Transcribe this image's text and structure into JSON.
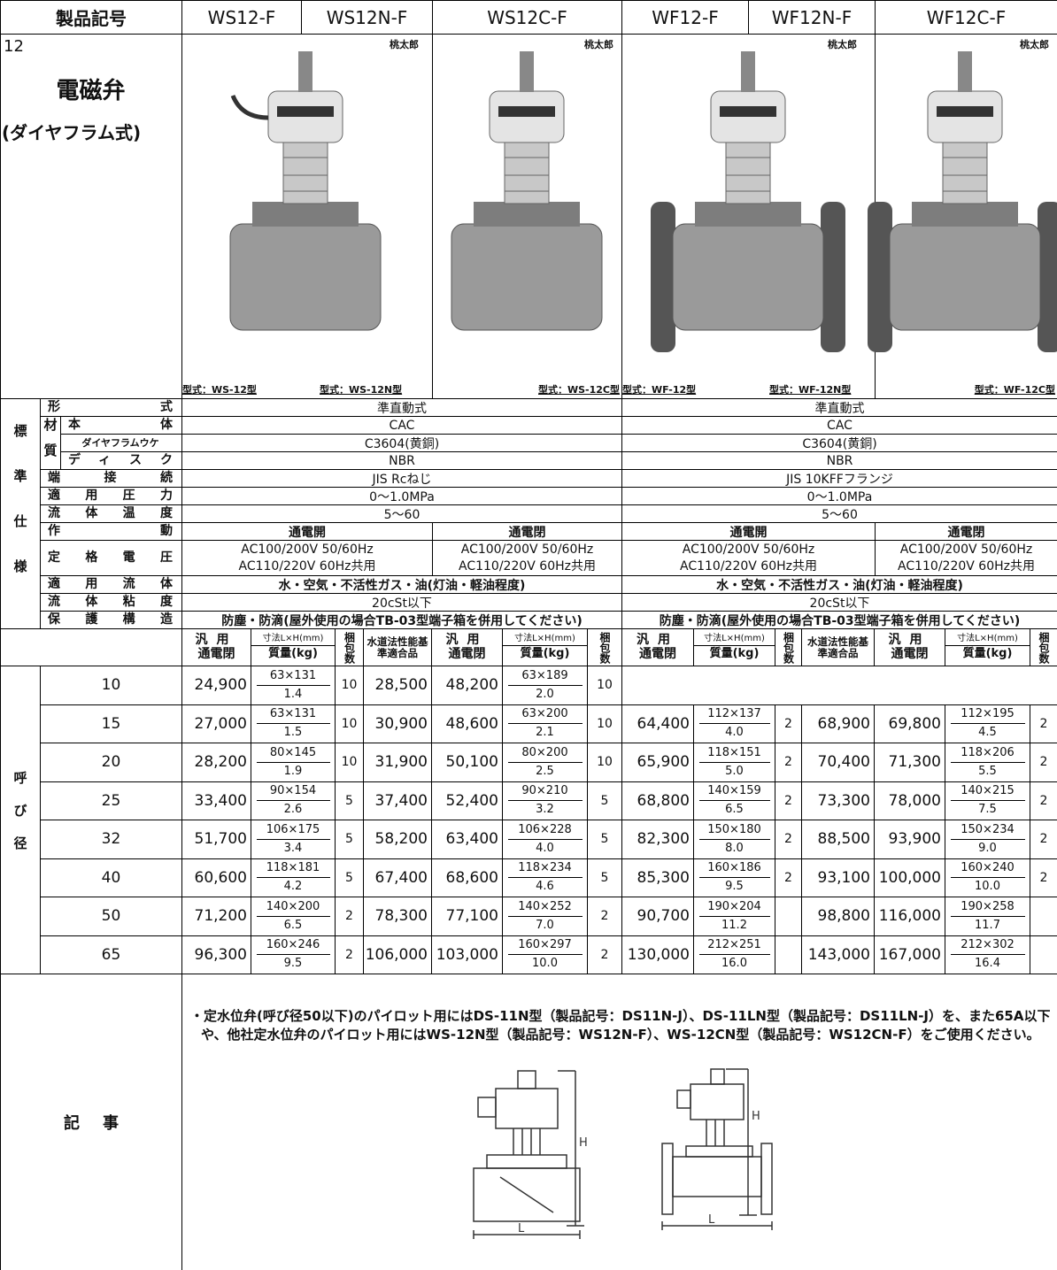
{
  "header": {
    "label": "製品記号",
    "models": [
      "WS12-F",
      "WS12N-F",
      "WS12C-F",
      "WF12-F",
      "WF12N-F",
      "WF12C-F"
    ]
  },
  "product": {
    "page": "12",
    "name": "電磁弁",
    "type": "(ダイヤフラム式)",
    "brand": "桃太郎",
    "captions": [
      "型式：WS-12型",
      "型式：WS-12N型",
      "型式：WS-12C型",
      "型式：WF-12型",
      "型式：WF-12N型",
      "型式：WF-12C型"
    ]
  },
  "specs": {
    "label": "標準仕様",
    "rows": [
      {
        "label": "形式",
        "values": [
          "準直動式",
          "準直動式"
        ]
      },
      {
        "label": "材質",
        "items": [
          {
            "label": "本体",
            "values": [
              "CAC",
              "CAC"
            ]
          },
          {
            "label": "ダイヤフラムウケ",
            "values": [
              "C3604(黄銅)",
              "C3604(黄銅)"
            ]
          },
          {
            "label": "ディスク",
            "values": [
              "NBR",
              "NBR"
            ]
          }
        ]
      },
      {
        "label": "端接続",
        "values": [
          "JIS Rcねじ",
          "JIS 10KFFフランジ"
        ]
      },
      {
        "label": "適用圧力",
        "values": [
          "0～1.0MPa",
          "0～1.0MPa"
        ]
      },
      {
        "label": "流体温度",
        "values": [
          "5～60",
          "5～60"
        ]
      },
      {
        "label": "作動",
        "values": [
          "通電開",
          "通電閉",
          "通電開",
          "通電閉"
        ]
      },
      {
        "label": "定格電圧",
        "values": [
          [
            "AC100/200V 50/60Hz",
            "AC110/220V 60Hz共用"
          ],
          [
            "AC100/200V 50/60Hz",
            "AC110/220V 60Hz共用"
          ],
          [
            "AC100/200V 50/60Hz",
            "AC110/220V 60Hz共用"
          ],
          [
            "AC100/200V 50/60Hz",
            "AC110/220V 60Hz共用"
          ]
        ]
      },
      {
        "label": "適用流体",
        "values": [
          "水・空気・不活性ガス・油(灯油・軽油程度)",
          "水・空気・不活性ガス・油(灯油・軽油程度)"
        ]
      },
      {
        "label": "流体粘度",
        "values": [
          "20cSt以下",
          "20cSt以下"
        ]
      },
      {
        "label": "保護構造",
        "values": [
          "防塵・防滴(屋外使用の場合TB-03型端子箱を併用してください)",
          "防塵・防滴(屋外使用の場合TB-03型端子箱を併用してください)"
        ]
      }
    ]
  },
  "price_header": {
    "general": [
      "汎用",
      "通電閉"
    ],
    "size": "寸法L×H(mm)",
    "mass": "質量(kg)",
    "pack": "梱包数",
    "water": "水道法性能基準適合品"
  },
  "sizes": {
    "label": "呼び径",
    "rows": [
      {
        "size": "10",
        "ws": [
          "24,900",
          "63×131",
          "1.4",
          "10",
          "28,500",
          "48,200",
          "63×189",
          "2.0",
          "10"
        ],
        "wf": null
      },
      {
        "size": "15",
        "ws": [
          "27,000",
          "63×131",
          "1.5",
          "10",
          "30,900",
          "48,600",
          "63×200",
          "2.1",
          "10"
        ],
        "wf": [
          "64,400",
          "112×137",
          "4.0",
          "2",
          "68,900",
          "69,800",
          "112×195",
          "4.5",
          "2"
        ]
      },
      {
        "size": "20",
        "ws": [
          "28,200",
          "80×145",
          "1.9",
          "10",
          "31,900",
          "50,100",
          "80×200",
          "2.5",
          "10"
        ],
        "wf": [
          "65,900",
          "118×151",
          "5.0",
          "2",
          "70,400",
          "71,300",
          "118×206",
          "5.5",
          "2"
        ]
      },
      {
        "size": "25",
        "ws": [
          "33,400",
          "90×154",
          "2.6",
          "5",
          "37,400",
          "52,400",
          "90×210",
          "3.2",
          "5"
        ],
        "wf": [
          "68,800",
          "140×159",
          "6.5",
          "2",
          "73,300",
          "78,000",
          "140×215",
          "7.5",
          "2"
        ]
      },
      {
        "size": "32",
        "ws": [
          "51,700",
          "106×175",
          "3.4",
          "5",
          "58,200",
          "63,400",
          "106×228",
          "4.0",
          "5"
        ],
        "wf": [
          "82,300",
          "150×180",
          "8.0",
          "2",
          "88,500",
          "93,900",
          "150×234",
          "9.0",
          "2"
        ]
      },
      {
        "size": "40",
        "ws": [
          "60,600",
          "118×181",
          "4.2",
          "5",
          "67,400",
          "68,600",
          "118×234",
          "4.6",
          "5"
        ],
        "wf": [
          "85,300",
          "160×186",
          "9.5",
          "2",
          "93,100",
          "100,000",
          "160×240",
          "10.0",
          "2"
        ]
      },
      {
        "size": "50",
        "ws": [
          "71,200",
          "140×200",
          "6.5",
          "2",
          "78,300",
          "77,100",
          "140×252",
          "7.0",
          "2"
        ],
        "wf": [
          "90,700",
          "190×204",
          "11.2",
          null,
          "98,800",
          "116,000",
          "190×258",
          "11.7",
          null
        ]
      },
      {
        "size": "65",
        "ws": [
          "96,300",
          "160×246",
          "9.5",
          "2",
          "106,000",
          "103,000",
          "160×297",
          "10.0",
          "2"
        ],
        "wf": [
          "130,000",
          "212×251",
          "16.0",
          null,
          "143,000",
          "167,000",
          "212×302",
          "16.4",
          null
        ]
      }
    ]
  },
  "notes": {
    "label": "記事",
    "text": "・定水位弁(呼び径50以下)のパイロット用にはDS-11N型（製品記号：DS11N-J）、DS-11LN型（製品記号：DS11LN-J）を、また65A以下や、他社定水位弁のパイロット用にはWS-12N型（製品記号：WS12N-F）、WS-12CN型（製品記号：WS12CN-F）をご使用ください。",
    "dim_h": "H",
    "dim_l": "L"
  }
}
